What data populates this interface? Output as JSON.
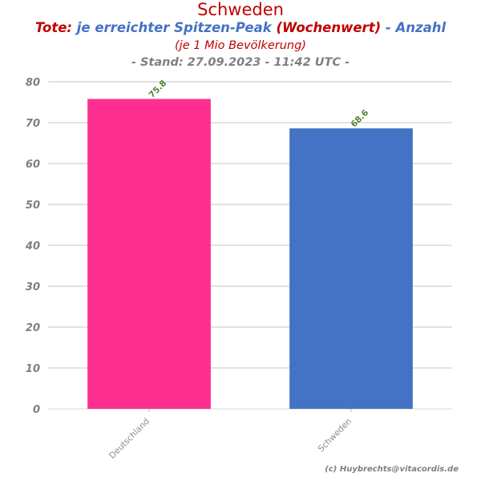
{
  "header": {
    "title": "Schweden",
    "subtitle_part1": "Tote:",
    "subtitle_part2": "je erreichter Spitzen-Peak",
    "subtitle_part3": "(Wochenwert)",
    "subtitle_part4": "- Anzahl",
    "subtitle2": "(je 1 Mio Bevölkerung)",
    "subtitle3": "- Stand: 27.09.2023 - 11:42 UTC -"
  },
  "footer": {
    "copyright": "(c) Huybrechts@vitacordis.de"
  },
  "colors": {
    "title_red": "#c00000",
    "accent_blue": "#4472c4",
    "bar_deutschland": "#ff2f92",
    "bar_schweden": "#4472c4",
    "data_label_green": "#548235",
    "grid": "#d9d9d9"
  },
  "chart_data": {
    "type": "bar",
    "categories": [
      "Deutschland",
      "Schweden"
    ],
    "values": [
      75.8,
      68.6
    ],
    "value_labels": [
      "75.8",
      "68.6"
    ],
    "bar_colors": [
      "#ff2f92",
      "#4472c4"
    ],
    "ylim": [
      0,
      80
    ],
    "yticks": [
      0,
      10,
      20,
      30,
      40,
      50,
      60,
      70,
      80
    ],
    "grid": true,
    "legend": "none",
    "title": "Schweden",
    "xlabel": "",
    "ylabel": ""
  }
}
